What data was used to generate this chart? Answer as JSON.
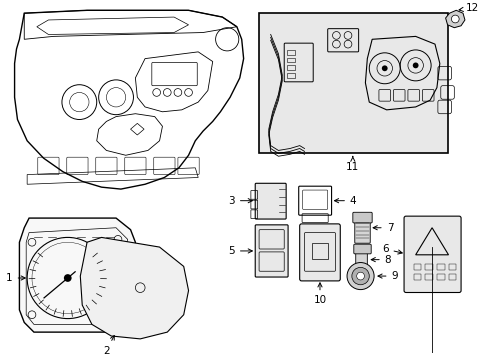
{
  "background_color": "#ffffff",
  "line_color": "#000000",
  "figsize": [
    4.89,
    3.6
  ],
  "dpi": 100,
  "inset_facecolor": "#e8e8e8",
  "cluster_facecolor": "#f8f8f8",
  "lens_facecolor": "#f0f0f0",
  "switch_facecolor": "#e8e8e8"
}
